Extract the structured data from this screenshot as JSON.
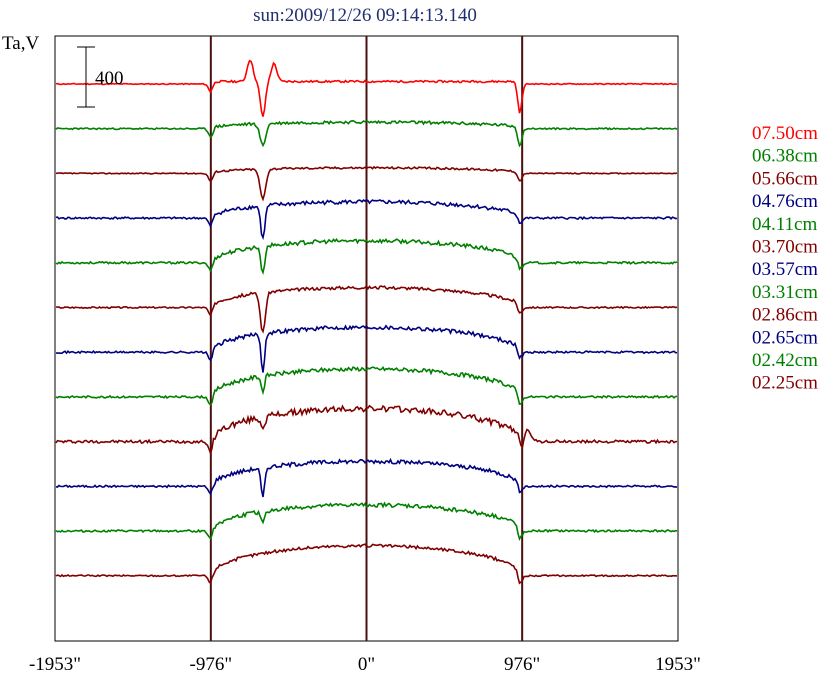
{
  "chart_data": {
    "type": "line",
    "title": "sun:2009/12/26 09:14:13.140",
    "ylabel": "Ta,V",
    "scale_bar_label": "400",
    "xlim": [
      -1953,
      1953
    ],
    "x_ticks": [
      -1953,
      -976,
      0,
      976,
      1953
    ],
    "x_tick_labels": [
      "-1953\"",
      "-976\"",
      "0\"",
      "976\"",
      "1953\""
    ],
    "vertical_lines": [
      -976,
      0,
      976
    ],
    "grid": false,
    "legend_position": "right",
    "series": [
      {
        "name": "07.50cm",
        "color": "#ff0000",
        "baseline": 0,
        "disk": 0,
        "lineHeight": 25,
        "sourceDepth": 0,
        "sourceWidth": 22,
        "spotDepth": 35,
        "spotDual": true,
        "limbFeature": "dip",
        "noise": 1.0,
        "seed": 11
      },
      {
        "name": "06.38cm",
        "color": "#008000",
        "baseline": 0,
        "disk": 6,
        "lineHeight": 6,
        "sourceDepth": 22,
        "sourceWidth": 25,
        "spotDepth": 20,
        "spotDual": false,
        "limbFeature": "dip",
        "noise": 1.5,
        "seed": 23
      },
      {
        "name": "05.66cm",
        "color": "#800000",
        "baseline": 0,
        "disk": 5,
        "lineHeight": 6,
        "sourceDepth": 30,
        "sourceWidth": 25,
        "spotDepth": 10,
        "spotDual": false,
        "limbFeature": "dip",
        "noise": 1.0,
        "seed": 37
      },
      {
        "name": "04.76cm",
        "color": "#000080",
        "baseline": 0,
        "disk": 16,
        "lineHeight": 3,
        "sourceDepth": 33,
        "sourceWidth": 18,
        "spotDepth": 8,
        "spotDual": false,
        "limbFeature": "dip",
        "noise": 2.0,
        "seed": 41
      },
      {
        "name": "04.11cm",
        "color": "#008000",
        "baseline": 0,
        "disk": 22,
        "lineHeight": 0,
        "sourceDepth": 28,
        "sourceWidth": 16,
        "spotDepth": 10,
        "spotDual": false,
        "limbFeature": "dip",
        "noise": 2.0,
        "seed": 53
      },
      {
        "name": "03.70cm",
        "color": "#800000",
        "baseline": 0,
        "disk": 20,
        "lineHeight": 0,
        "sourceDepth": 40,
        "sourceWidth": 22,
        "spotDepth": 10,
        "spotDual": false,
        "limbFeature": "dip",
        "noise": 1.5,
        "seed": 67
      },
      {
        "name": "03.57cm",
        "color": "#000080",
        "baseline": 0,
        "disk": 25,
        "lineHeight": 0,
        "sourceDepth": 38,
        "sourceWidth": 16,
        "spotDepth": 10,
        "spotDual": false,
        "limbFeature": "dip",
        "noise": 2.0,
        "seed": 71
      },
      {
        "name": "03.31cm",
        "color": "#008000",
        "baseline": 0,
        "disk": 28,
        "lineHeight": 0,
        "sourceDepth": 16,
        "sourceWidth": 14,
        "spotDepth": 12,
        "spotDual": false,
        "limbFeature": "dip",
        "noise": 2.0,
        "seed": 83
      },
      {
        "name": "02.86cm",
        "color": "#800000",
        "baseline": 0,
        "disk": 33,
        "lineHeight": 0,
        "sourceDepth": 10,
        "sourceWidth": 20,
        "spotDepth": 14,
        "spotDual": false,
        "limbFeature": "peak",
        "noise": 3.0,
        "seed": 97
      },
      {
        "name": "02.65cm",
        "color": "#000080",
        "baseline": 0,
        "disk": 25,
        "lineHeight": 0,
        "sourceDepth": 30,
        "sourceWidth": 16,
        "spotDepth": 10,
        "spotDual": false,
        "limbFeature": "dip",
        "noise": 2.0,
        "seed": 101
      },
      {
        "name": "02.42cm",
        "color": "#008000",
        "baseline": 0,
        "disk": 26,
        "lineHeight": 0,
        "sourceDepth": 12,
        "sourceWidth": 16,
        "spotDepth": 12,
        "spotDual": false,
        "limbFeature": "dip",
        "noise": 2.0,
        "seed": 113
      },
      {
        "name": "02.25cm",
        "color": "#800000",
        "baseline": 0,
        "disk": 30,
        "lineHeight": 0,
        "sourceDepth": 0,
        "sourceWidth": 16,
        "spotDepth": 14,
        "spotDual": false,
        "limbFeature": "dip",
        "noise": 1.5,
        "seed": 127
      }
    ]
  }
}
